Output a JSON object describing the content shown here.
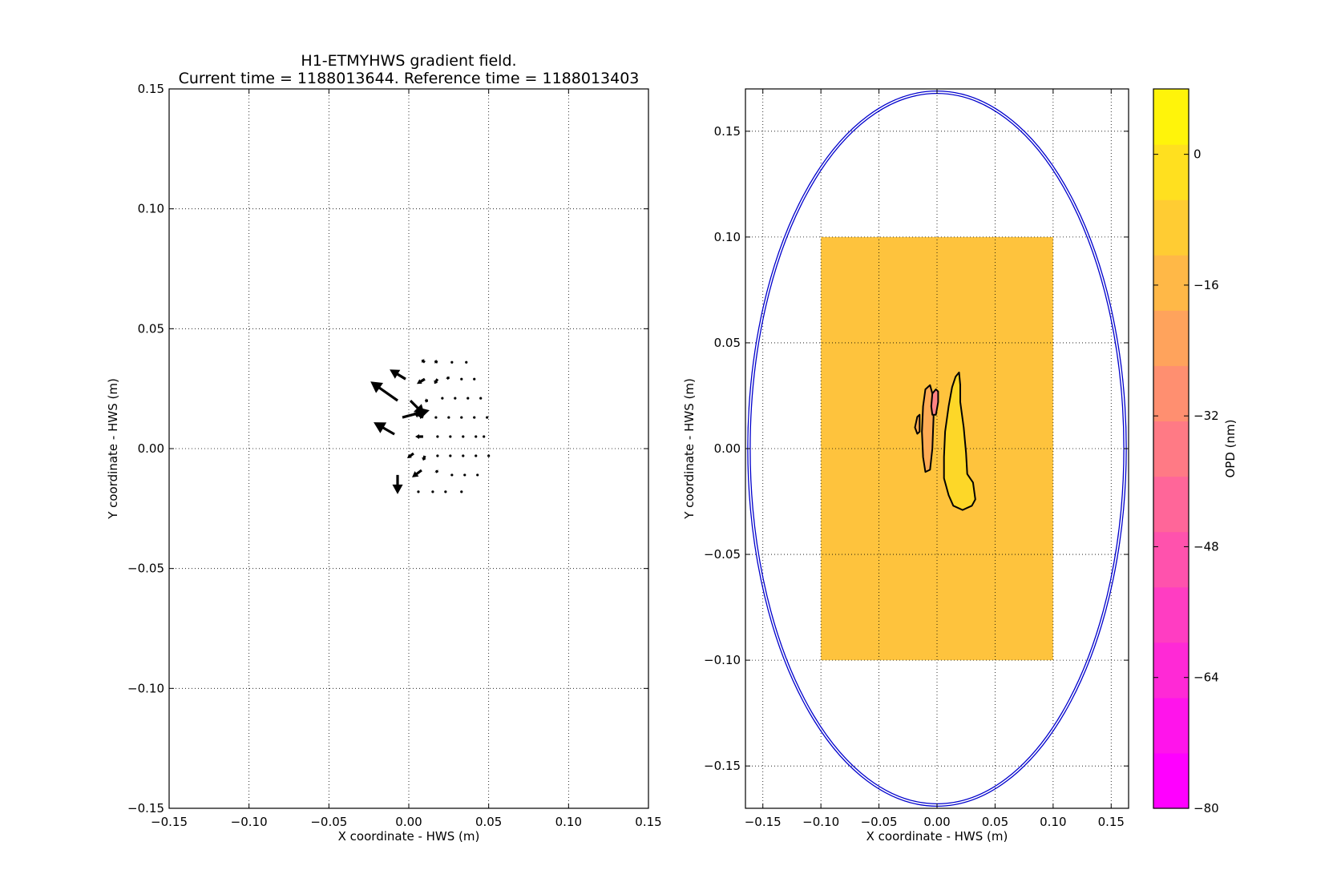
{
  "chart_data": [
    {
      "type": "quiver",
      "title": "H1-ETMYHWS gradient field.",
      "subtitle": "Current time = 1188013644. Reference time = 1188013403",
      "xlabel": "X coordinate - HWS (m)",
      "ylabel": "Y coordinate - HWS (m)",
      "xlim": [
        -0.15,
        0.15
      ],
      "ylim": [
        -0.15,
        0.15
      ],
      "xticks": [
        "−0.15",
        "−0.10",
        "−0.05",
        "0.00",
        "0.05",
        "0.10",
        "0.15"
      ],
      "yticks": [
        "−0.15",
        "−0.10",
        "−0.05",
        "0.00",
        "0.05",
        "0.10",
        "0.15"
      ],
      "grid": true,
      "vectors": [
        {
          "x": 0.01,
          "y": 0.036,
          "u": -0.002,
          "v": 0.001
        },
        {
          "x": 0.018,
          "y": 0.036,
          "u": -0.002,
          "v": 0.0005
        },
        {
          "x": 0.027,
          "y": 0.036,
          "u": -0.001,
          "v": 0.0
        },
        {
          "x": 0.036,
          "y": 0.036,
          "u": 0.0,
          "v": 0.0
        },
        {
          "x": -0.002,
          "y": 0.029,
          "u": -0.01,
          "v": 0.004
        },
        {
          "x": 0.01,
          "y": 0.029,
          "u": -0.005,
          "v": -0.002
        },
        {
          "x": 0.018,
          "y": 0.029,
          "u": -0.002,
          "v": -0.002
        },
        {
          "x": 0.025,
          "y": 0.029,
          "u": -0.001,
          "v": 0.001
        },
        {
          "x": 0.033,
          "y": 0.029,
          "u": 0.0,
          "v": 0.0
        },
        {
          "x": 0.041,
          "y": 0.029,
          "u": 0.0,
          "v": 0.0
        },
        {
          "x": -0.007,
          "y": 0.02,
          "u": -0.017,
          "v": 0.008
        },
        {
          "x": 0.001,
          "y": 0.02,
          "u": 0.009,
          "v": -0.006
        },
        {
          "x": 0.012,
          "y": 0.02,
          "u": -0.002,
          "v": 0.0
        },
        {
          "x": 0.021,
          "y": 0.021,
          "u": 0.0,
          "v": 0.0
        },
        {
          "x": 0.029,
          "y": 0.021,
          "u": 0.0,
          "v": 0.0
        },
        {
          "x": 0.037,
          "y": 0.021,
          "u": 0.0,
          "v": 0.0
        },
        {
          "x": 0.045,
          "y": 0.021,
          "u": 0.0,
          "v": 0.0
        },
        {
          "x": -0.004,
          "y": 0.013,
          "u": 0.017,
          "v": 0.003
        },
        {
          "x": 0.009,
          "y": 0.013,
          "u": -0.006,
          "v": 0.002
        },
        {
          "x": 0.017,
          "y": 0.013,
          "u": 0.0,
          "v": 0.0
        },
        {
          "x": 0.025,
          "y": 0.013,
          "u": 0.0,
          "v": 0.0
        },
        {
          "x": 0.033,
          "y": 0.013,
          "u": 0.0,
          "v": 0.0
        },
        {
          "x": 0.041,
          "y": 0.013,
          "u": 0.0,
          "v": 0.0
        },
        {
          "x": 0.049,
          "y": 0.013,
          "u": 0.0,
          "v": 0.0
        },
        {
          "x": -0.009,
          "y": 0.006,
          "u": -0.013,
          "v": 0.005
        },
        {
          "x": 0.009,
          "y": 0.005,
          "u": -0.005,
          "v": 0.0
        },
        {
          "x": 0.018,
          "y": 0.005,
          "u": 0.0,
          "v": 0.0
        },
        {
          "x": 0.026,
          "y": 0.005,
          "u": 0.0,
          "v": 0.0
        },
        {
          "x": 0.034,
          "y": 0.005,
          "u": 0.0,
          "v": 0.0
        },
        {
          "x": 0.042,
          "y": 0.005,
          "u": 0.0,
          "v": 0.0
        },
        {
          "x": 0.047,
          "y": 0.005,
          "u": 0.0,
          "v": 0.0
        },
        {
          "x": 0.003,
          "y": -0.002,
          "u": -0.004,
          "v": -0.002
        },
        {
          "x": 0.01,
          "y": -0.003,
          "u": -0.001,
          "v": -0.002
        },
        {
          "x": 0.018,
          "y": -0.003,
          "u": 0.0,
          "v": 0.0
        },
        {
          "x": 0.026,
          "y": -0.003,
          "u": 0.0,
          "v": 0.0
        },
        {
          "x": 0.034,
          "y": -0.003,
          "u": 0.0,
          "v": 0.0
        },
        {
          "x": 0.042,
          "y": -0.003,
          "u": 0.0,
          "v": 0.0
        },
        {
          "x": 0.05,
          "y": -0.003,
          "u": 0.0,
          "v": 0.0
        },
        {
          "x": -0.007,
          "y": -0.011,
          "u": 0.0,
          "v": -0.008
        },
        {
          "x": 0.008,
          "y": -0.009,
          "u": -0.006,
          "v": -0.003
        },
        {
          "x": 0.018,
          "y": -0.01,
          "u": -0.001,
          "v": 0.001
        },
        {
          "x": 0.027,
          "y": -0.011,
          "u": 0.0,
          "v": 0.0
        },
        {
          "x": 0.035,
          "y": -0.011,
          "u": 0.0,
          "v": 0.0
        },
        {
          "x": 0.043,
          "y": -0.011,
          "u": 0.0,
          "v": 0.0
        },
        {
          "x": 0.006,
          "y": -0.018,
          "u": 0.0,
          "v": 0.0
        },
        {
          "x": 0.015,
          "y": -0.018,
          "u": 0.0,
          "v": 0.0
        },
        {
          "x": 0.023,
          "y": -0.018,
          "u": 0.0,
          "v": 0.0
        },
        {
          "x": 0.033,
          "y": -0.018,
          "u": 0.0,
          "v": 0.0
        }
      ]
    },
    {
      "type": "contour",
      "title": "",
      "xlabel": "X coordinate - HWS (m)",
      "ylabel": "Y coordinate - HWS (m)",
      "xlim": [
        -0.165,
        0.165
      ],
      "ylim": [
        -0.17,
        0.17
      ],
      "xticks": [
        "−0.15",
        "−0.10",
        "−0.05",
        "0.00",
        "0.05",
        "0.10",
        "0.15"
      ],
      "yticks": [
        "−0.15",
        "−0.10",
        "−0.05",
        "0.00",
        "0.05",
        "0.10",
        "0.15"
      ],
      "grid": true,
      "aperture": {
        "rx": 0.163,
        "ry": 0.169,
        "color": "#0000cc"
      },
      "data_region": {
        "x": [
          -0.1,
          0.1
        ],
        "y": [
          -0.1,
          0.1
        ],
        "level_value": -12,
        "color": "#fec33d"
      },
      "contours": [
        {
          "level": -20,
          "color": "#feab55",
          "path": [
            [
              -0.012,
              0.02
            ],
            [
              -0.01,
              0.028
            ],
            [
              -0.006,
              0.03
            ],
            [
              -0.004,
              0.026
            ],
            [
              -0.003,
              0.015
            ],
            [
              -0.004,
              0.0
            ],
            [
              -0.006,
              -0.01
            ],
            [
              -0.01,
              -0.011
            ],
            [
              -0.012,
              -0.004
            ],
            [
              -0.013,
              0.008
            ]
          ]
        },
        {
          "level": -28,
          "color": "#fe8383",
          "path": [
            [
              -0.004,
              0.026
            ],
            [
              -0.001,
              0.028
            ],
            [
              0.001,
              0.027
            ],
            [
              0.001,
              0.022
            ],
            [
              -0.001,
              0.016
            ],
            [
              -0.004,
              0.016
            ],
            [
              -0.005,
              0.02
            ]
          ]
        },
        {
          "level": -20,
          "color": "#feab55",
          "path": [
            [
              -0.017,
              0.015
            ],
            [
              -0.015,
              0.016
            ],
            [
              -0.015,
              0.008
            ],
            [
              -0.017,
              0.007
            ],
            [
              -0.019,
              0.01
            ]
          ]
        },
        {
          "level": -4,
          "color": "#fdd728",
          "path": [
            [
              0.016,
              0.034
            ],
            [
              0.019,
              0.036
            ],
            [
              0.02,
              0.03
            ],
            [
              0.02,
              0.022
            ],
            [
              0.023,
              0.01
            ],
            [
              0.025,
              -0.002
            ],
            [
              0.026,
              -0.012
            ],
            [
              0.031,
              -0.016
            ],
            [
              0.033,
              -0.024
            ],
            [
              0.03,
              -0.027
            ],
            [
              0.022,
              -0.029
            ],
            [
              0.014,
              -0.027
            ],
            [
              0.01,
              -0.022
            ],
            [
              0.006,
              -0.014
            ],
            [
              0.006,
              -0.004
            ],
            [
              0.007,
              0.008
            ],
            [
              0.01,
              0.02
            ],
            [
              0.013,
              0.029
            ]
          ]
        }
      ],
      "colorbar": {
        "label": "OPD (nm)",
        "vmin": -80,
        "vmax": 8,
        "tick_values": [
          0,
          -16,
          -32,
          -48,
          -64,
          -80
        ],
        "tick_labels": [
          "0",
          "−16",
          "−32",
          "−48",
          "−64",
          "−80"
        ],
        "colors": [
          "#ff00ff",
          "#ff14eb",
          "#ff29d6",
          "#ff3dc2",
          "#ff52ad",
          "#ff6699",
          "#ff7a85",
          "#ff8f70",
          "#ffa35c",
          "#ffb847",
          "#ffcc33",
          "#ffe01f",
          "#fff40a"
        ]
      }
    }
  ]
}
